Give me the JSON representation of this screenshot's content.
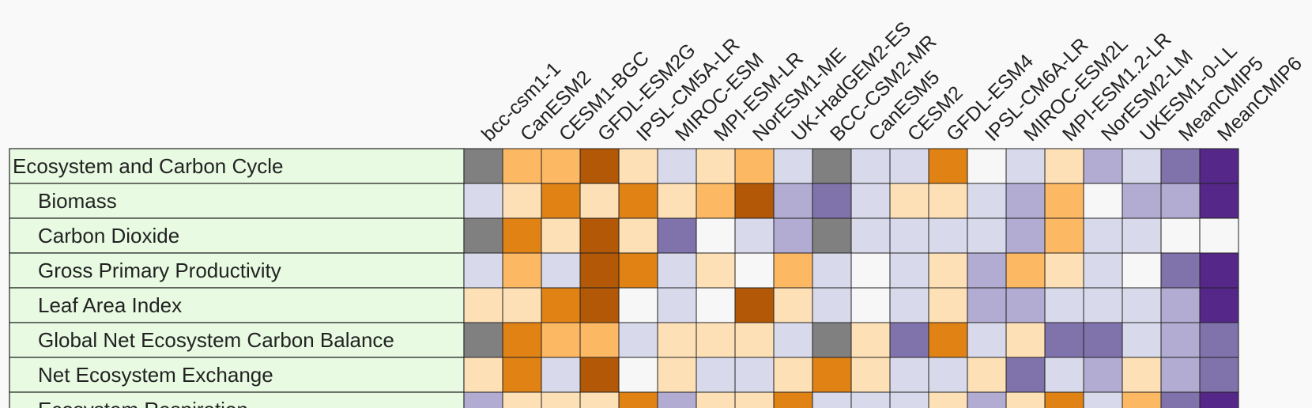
{
  "chart_data": {
    "type": "heatmap",
    "title": "",
    "columns": [
      "bcc-csm1-1",
      "CanESM2",
      "CESM1-BGC",
      "GFDL-ESM2G",
      "IPSL-CM5A-LR",
      "MIROC-ESM",
      "MPI-ESM-LR",
      "NorESM1-ME",
      "UK-HadGEM2-ES",
      "BCC-CSM2-MR",
      "CanESM5",
      "CESM2",
      "GFDL-ESM4",
      "IPSL-CM6A-LR",
      "MIROC-ESM2L",
      "MPI-ESM1.2-LR",
      "NorESM2-LM",
      "UKESM1-0-LL",
      "MeanCMIP5",
      "MeanCMIP6"
    ],
    "rows": [
      {
        "label": "Ecosystem and Carbon Cycle",
        "indent": 0
      },
      {
        "label": "Biomass",
        "indent": 1
      },
      {
        "label": "Carbon Dioxide",
        "indent": 1
      },
      {
        "label": "Gross Primary Productivity",
        "indent": 1
      },
      {
        "label": "Leaf Area Index",
        "indent": 1
      },
      {
        "label": "Global Net Ecosystem Carbon Balance",
        "indent": 1
      },
      {
        "label": "Net Ecosystem Exchange",
        "indent": 1
      },
      {
        "label": "Ecosystem Respiration",
        "indent": 1
      }
    ],
    "scale": {
      "-3": "#b35806",
      "-2": "#e08214",
      "-1": "#fdb863",
      "0": "#fee0b6",
      "1": "#f7f7f7",
      "2": "#d8daeb",
      "3": "#b2abd2",
      "4": "#8073ac",
      "5": "#542788",
      "missing": "#808080"
    },
    "values": [
      [
        "missing",
        -1,
        -1,
        -3,
        0,
        2,
        0,
        -1,
        2,
        "missing",
        2,
        2,
        -2,
        1,
        2,
        0,
        3,
        2,
        4,
        5
      ],
      [
        2,
        0,
        -2,
        0,
        -2,
        0,
        -1,
        -3,
        3,
        4,
        2,
        0,
        0,
        2,
        3,
        -1,
        1,
        3,
        3,
        5
      ],
      [
        "missing",
        -2,
        0,
        -3,
        0,
        4,
        1,
        2,
        3,
        "missing",
        2,
        2,
        2,
        2,
        3,
        -1,
        2,
        2,
        1,
        1
      ],
      [
        2,
        -1,
        2,
        -3,
        -2,
        2,
        0,
        1,
        -1,
        2,
        1,
        2,
        0,
        3,
        -1,
        0,
        2,
        1,
        4,
        5
      ],
      [
        0,
        0,
        -2,
        -3,
        1,
        2,
        1,
        -3,
        0,
        2,
        1,
        2,
        0,
        3,
        3,
        2,
        2,
        2,
        3,
        5
      ],
      [
        "missing",
        -2,
        -1,
        -1,
        2,
        0,
        0,
        0,
        2,
        "missing",
        0,
        4,
        -2,
        2,
        0,
        4,
        4,
        2,
        3,
        4
      ],
      [
        0,
        -2,
        2,
        -3,
        1,
        0,
        2,
        2,
        0,
        -2,
        0,
        2,
        2,
        0,
        4,
        2,
        3,
        0,
        3,
        4
      ],
      [
        3,
        0,
        0,
        0,
        -2,
        3,
        0,
        0,
        -2,
        2,
        2,
        2,
        0,
        3,
        0,
        -2,
        2,
        -1,
        4,
        5
      ]
    ]
  },
  "colors": {
    "row_label_background": "#e8fbe2",
    "border": "#222222",
    "page_background": "#f9f9f9"
  }
}
